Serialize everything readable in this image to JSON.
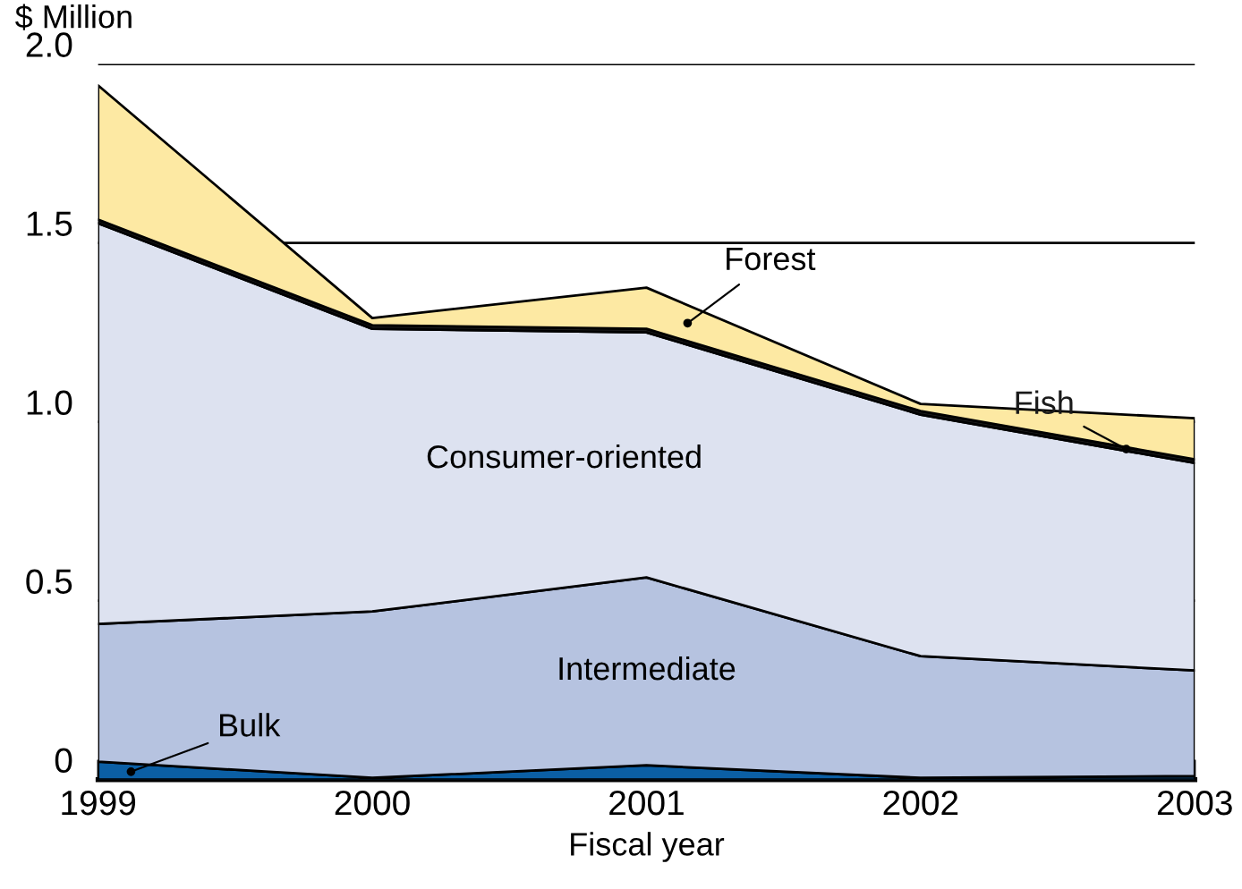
{
  "chart_data": {
    "type": "area",
    "stacked": true,
    "ylabel": "$ Million",
    "xlabel": "Fiscal year",
    "categories": [
      "1999",
      "2000",
      "2001",
      "2002",
      "2003"
    ],
    "series": [
      {
        "name": "Bulk",
        "color": "#0b5fa5",
        "values": [
          0.05,
          0.005,
          0.04,
          0.005,
          0.01
        ]
      },
      {
        "name": "Intermediate",
        "color": "#b6c3e0",
        "values": [
          0.385,
          0.465,
          0.525,
          0.34,
          0.295
        ]
      },
      {
        "name": "Consumer-oriented",
        "color": "#dde2f0",
        "values": [
          1.12,
          0.79,
          0.685,
          0.675,
          0.58
        ]
      },
      {
        "name": "Fish",
        "color": "#1a1a1a",
        "values": [
          0.01,
          0.01,
          0.01,
          0.01,
          0.01
        ]
      },
      {
        "name": "Forest",
        "color": "#fde9a3",
        "values": [
          0.375,
          0.02,
          0.115,
          0.02,
          0.115
        ]
      }
    ],
    "ylim": [
      0,
      2.0
    ],
    "yticks": [
      {
        "value": 0,
        "label": "0"
      },
      {
        "value": 0.5,
        "label": "0.5"
      },
      {
        "value": 1.0,
        "label": "1.0"
      },
      {
        "value": 1.5,
        "label": "1.5"
      },
      {
        "value": 2.0,
        "label": "2.0"
      }
    ],
    "grid": "y",
    "legend": false
  }
}
